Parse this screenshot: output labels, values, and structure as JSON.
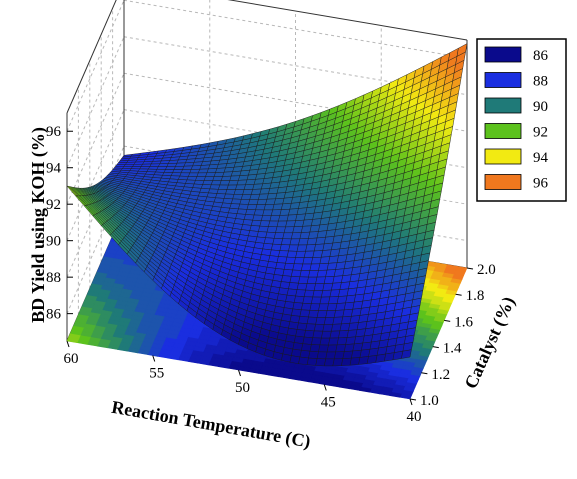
{
  "chart_data": {
    "type": "surface3d",
    "zlabel": "BD Yield using KOH (%)",
    "xlabel": "Reaction Temperature (C)",
    "ylabel": "Catalyst (%)",
    "x_ticks": [
      "60",
      "55",
      "50",
      "45",
      "40"
    ],
    "y_ticks": [
      "1.0",
      "1.2",
      "1.4",
      "1.6",
      "1.8",
      "2.0"
    ],
    "z_ticks": [
      "86",
      "88",
      "90",
      "92",
      "94",
      "96"
    ],
    "xlim": [
      40,
      60
    ],
    "ylim": [
      1.0,
      2.0
    ],
    "zlim": [
      84.5,
      97
    ],
    "surface_corners": [
      {
        "temperature": 60,
        "catalyst": 1.0,
        "yield": 93.0
      },
      {
        "temperature": 60,
        "catalyst": 2.0,
        "yield": 87.5
      },
      {
        "temperature": 40,
        "catalyst": 1.0,
        "yield": 86.8
      },
      {
        "temperature": 40,
        "catalyst": 2.0,
        "yield": 96.8
      }
    ],
    "grid": true,
    "legend_position": "top-right",
    "legend": {
      "title": "",
      "entries": [
        {
          "label": "86",
          "color": "#0a0a8c"
        },
        {
          "label": "88",
          "color": "#1a2ee0"
        },
        {
          "label": "90",
          "color": "#1f7a78"
        },
        {
          "label": "92",
          "color": "#5cc21c"
        },
        {
          "label": "94",
          "color": "#f2ea12"
        },
        {
          "label": "96",
          "color": "#f0781e"
        }
      ]
    }
  }
}
